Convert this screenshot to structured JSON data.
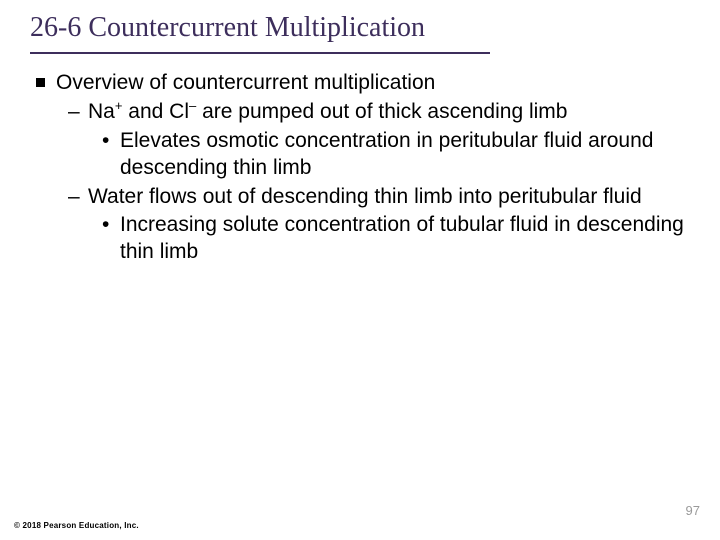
{
  "colors": {
    "title_color": "#3d2e5c",
    "body_text": "#000000",
    "background": "#ffffff",
    "page_num_color": "#9a9a9a"
  },
  "typography": {
    "title_font": "Times New Roman",
    "title_fontsize_pt": 21,
    "body_font": "Arial",
    "body_fontsize_pt": 16,
    "line_height": 1.28
  },
  "layout": {
    "slide_width": 720,
    "slide_height": 540,
    "title_underline_width": 460
  },
  "title": "26-6 Countercurrent Multiplication",
  "bullets": {
    "l1_1": "Overview of countercurrent multiplication",
    "l2_1_pre": "Na",
    "l2_1_sup1": "+",
    "l2_1_mid": " and Cl",
    "l2_1_sup2": "–",
    "l2_1_post": " are pumped out of thick ascending limb",
    "l3_1": "Elevates osmotic concentration in peritubular fluid around descending thin limb",
    "l2_2": "Water flows out of descending thin limb into peritubular fluid",
    "l3_2": "Increasing solute concentration of tubular fluid in descending thin limb"
  },
  "footer": "© 2018 Pearson Education, Inc.",
  "page_number": "97"
}
